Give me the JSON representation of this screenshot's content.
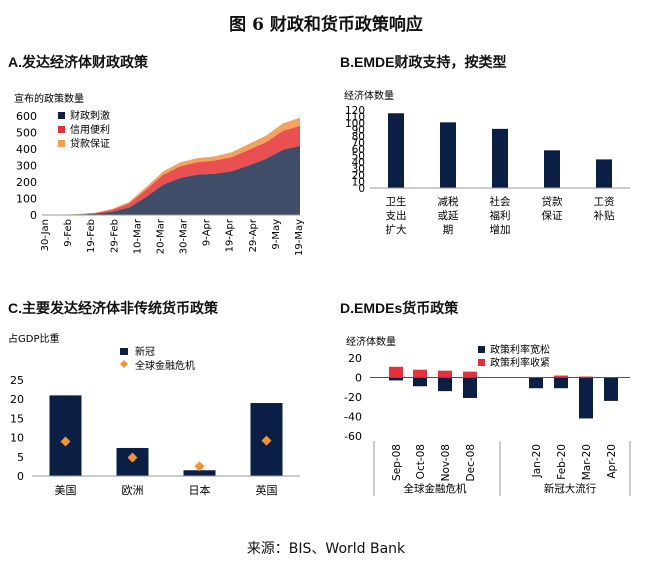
{
  "figure": {
    "title": "图 6    财政和货币政策响应",
    "source": "来源：BIS、World Bank"
  },
  "colors": {
    "navy": "#0b1f45",
    "red": "#e8303a",
    "orange": "#f4a04e",
    "diamond": "#f39433",
    "area_navy": "#3f4d68",
    "area_red": "#ea5050",
    "area_orange": "#f3a35c"
  },
  "chart_data": [
    {
      "id": "A",
      "type": "area",
      "title": "A.发达经济体财政政策",
      "ylabel": "宣布的政策数量",
      "ylim": [
        0,
        600
      ],
      "yticks": [
        0,
        100,
        200,
        300,
        400,
        500,
        600
      ],
      "xticks": [
        "30-Jan",
        "9-Feb",
        "19-Feb",
        "29-Feb",
        "10-Mar",
        "20-Mar",
        "30-Mar",
        "9-Apr",
        "19-Apr",
        "29-Apr",
        "9-May",
        "19-May"
      ],
      "x": [
        "30-Jan",
        "9-Feb",
        "19-Feb",
        "29-Feb",
        "10-Mar",
        "15-Mar",
        "20-Mar",
        "25-Mar",
        "30-Mar",
        "31-Mar",
        "9-Apr",
        "19-Apr",
        "29-Apr",
        "9-May",
        "19-May",
        "21-May"
      ],
      "series": [
        {
          "name": "财政刺激",
          "values": [
            0,
            1,
            3,
            8,
            20,
            45,
            110,
            185,
            225,
            245,
            250,
            265,
            300,
            340,
            395,
            420
          ]
        },
        {
          "name": "信用便利",
          "values": [
            0,
            1,
            2,
            4,
            12,
            25,
            45,
            60,
            70,
            75,
            80,
            85,
            95,
            100,
            115,
            120
          ]
        },
        {
          "name": "贷款保证",
          "values": [
            0,
            0,
            1,
            2,
            5,
            10,
            15,
            20,
            25,
            25,
            25,
            30,
            35,
            40,
            45,
            50
          ]
        }
      ],
      "legend": "top-left"
    },
    {
      "id": "B",
      "type": "bar",
      "title": "B.EMDE财政支持，按类型",
      "ylabel": "经济体数量",
      "ylim": [
        0,
        120
      ],
      "yticks": [
        0,
        10,
        20,
        30,
        40,
        50,
        60,
        70,
        80,
        90,
        100,
        110,
        120
      ],
      "categories": [
        [
          "卫生",
          "支出",
          "扩大"
        ],
        [
          "减税",
          "或延",
          "期"
        ],
        [
          "社会",
          "福利",
          "增加"
        ],
        [
          "贷款",
          "保证"
        ],
        [
          "工资",
          "补贴"
        ]
      ],
      "values": [
        115,
        101,
        91,
        58,
        44
      ]
    },
    {
      "id": "C",
      "type": "bar",
      "title": "C.主要发达经济体非传统货币政策",
      "ylabel": "占GDP比重",
      "ylim": [
        0,
        25
      ],
      "yticks": [
        0,
        5,
        10,
        15,
        20,
        25
      ],
      "categories": [
        "美国",
        "欧洲",
        "日本",
        "英国"
      ],
      "series": [
        {
          "name": "新冠",
          "values": [
            21,
            7.3,
            1.5,
            19
          ]
        },
        {
          "name": "全球金融危机",
          "values": [
            9,
            4.8,
            2.5,
            9.2
          ]
        }
      ],
      "legend": "top-center"
    },
    {
      "id": "D",
      "type": "bar",
      "title": "D.EMDEs货币政策",
      "ylabel": "经济体数量",
      "ylim": [
        -60,
        20
      ],
      "yticks": [
        20,
        0,
        -20,
        -40,
        -60
      ],
      "categories": [
        "Sep-08",
        "Oct-08",
        "Nov-08",
        "Dec-08",
        "Jan-20",
        "Feb-20",
        "Mar-20",
        "Apr-20"
      ],
      "groups": [
        "全球金融危机",
        "新冠大流行"
      ],
      "series": [
        {
          "name": "政策利率宽松",
          "values": [
            -3,
            -9,
            -14,
            -21,
            -11,
            -11,
            -42,
            -24
          ]
        },
        {
          "name": "政策利率收紧",
          "values": [
            11,
            8,
            7,
            6,
            0,
            2,
            1,
            0
          ]
        }
      ],
      "legend": "top-right"
    }
  ]
}
